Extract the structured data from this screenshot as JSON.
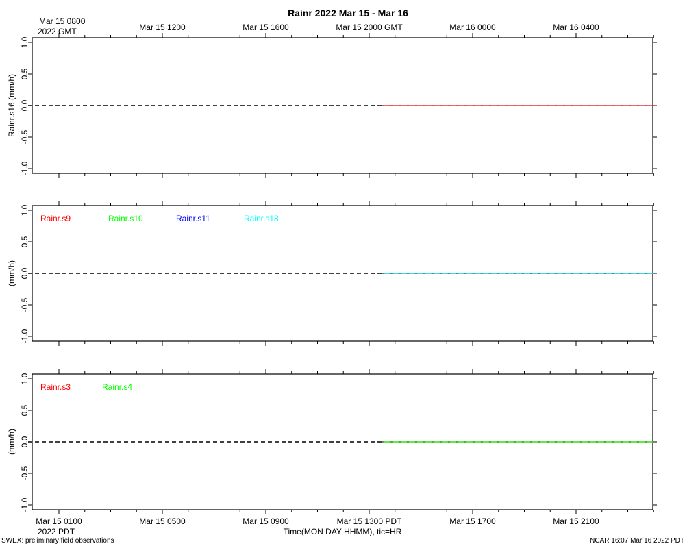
{
  "title": "Rainr 2022 Mar 15 - Mar 16",
  "top_axis": {
    "first_label_line1": "Mar 15 0800",
    "first_label_line2": "2022 GMT",
    "labels": [
      "Mar 15 1200",
      "Mar 15 1600",
      "Mar 15 2000 GMT",
      "Mar 16 0000",
      "Mar 16 0400"
    ]
  },
  "bottom_axis": {
    "first_label_line1": "Mar 15 0100",
    "first_label_line2": "2022 PDT",
    "labels": [
      "Mar 15 0500",
      "Mar 15 0900",
      "Mar 15 1300 PDT",
      "Mar 15 1700",
      "Mar 15 2100"
    ],
    "xlabel": "Time(MON DAY HHMM), tic=HR"
  },
  "footer": {
    "left": "SWEX: preliminary field observations",
    "right": "NCAR 16:07 Mar 16 2022 PDT"
  },
  "chart_data": [
    {
      "type": "line",
      "ylabel": "Rainr.s16 (mm/h)",
      "ylim": [
        -1.0,
        1.0
      ],
      "yticks": [
        "-1.0",
        "-0.5",
        "0.0",
        "0.5",
        "1.0"
      ],
      "x_unit": "hours after Mar 15 0800 GMT",
      "xlim": [
        0,
        23.3
      ],
      "reference_line": {
        "y": 0.0,
        "style": "dashed",
        "color": "#000000"
      },
      "series": [
        {
          "name": "Rainr.s16",
          "color": "#ff0000",
          "x_start": 12.5,
          "x_end": 23.3,
          "value": 0.0,
          "show_legend": false
        }
      ]
    },
    {
      "type": "line",
      "ylabel": "(mm/h)",
      "ylim": [
        -1.0,
        1.0
      ],
      "yticks": [
        "-1.0",
        "-0.5",
        "0.0",
        "0.5",
        "1.0"
      ],
      "x_unit": "hours after Mar 15 0800 GMT",
      "xlim": [
        0,
        23.3
      ],
      "reference_line": {
        "y": 0.0,
        "style": "dashed",
        "color": "#000000"
      },
      "series": [
        {
          "name": "Rainr.s9",
          "color": "#ff0000",
          "x_start": 12.5,
          "x_end": 23.3,
          "value": 0.0,
          "show_legend": true
        },
        {
          "name": "Rainr.s10",
          "color": "#00ff00",
          "x_start": 12.5,
          "x_end": 23.3,
          "value": 0.0,
          "show_legend": true
        },
        {
          "name": "Rainr.s11",
          "color": "#0000ff",
          "x_start": 12.5,
          "x_end": 23.3,
          "value": 0.0,
          "show_legend": true
        },
        {
          "name": "Rainr.s18",
          "color": "#00ffff",
          "x_start": 12.5,
          "x_end": 23.3,
          "value": 0.0,
          "show_legend": true
        }
      ]
    },
    {
      "type": "line",
      "ylabel": "(mm/h)",
      "ylim": [
        -1.0,
        1.0
      ],
      "yticks": [
        "-1.0",
        "-0.5",
        "0.0",
        "0.5",
        "1.0"
      ],
      "x_unit": "hours after Mar 15 0800 GMT",
      "xlim": [
        0,
        23.3
      ],
      "reference_line": {
        "y": 0.0,
        "style": "dashed",
        "color": "#000000"
      },
      "series": [
        {
          "name": "Rainr.s3",
          "color": "#ff0000",
          "x_start": 12.5,
          "x_end": 23.3,
          "value": 0.0,
          "show_legend": true
        },
        {
          "name": "Rainr.s4",
          "color": "#00ff00",
          "x_start": 12.5,
          "x_end": 23.3,
          "value": 0.0,
          "show_legend": true
        }
      ]
    }
  ]
}
